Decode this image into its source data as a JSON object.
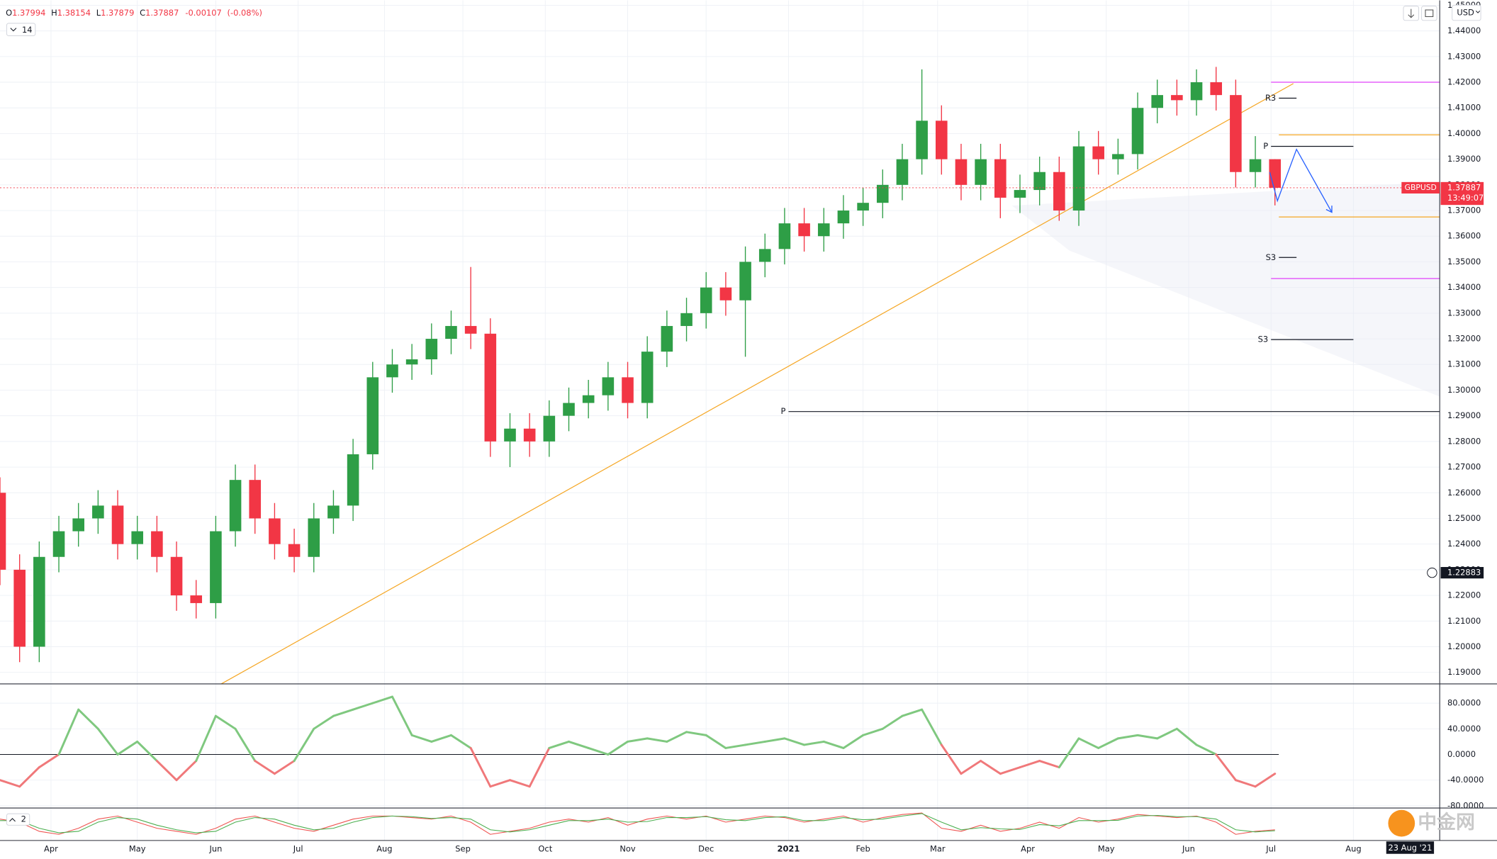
{
  "chart_data": {
    "type": "candlestick",
    "symbol": "GBPUSD",
    "currency": "USD",
    "indicators_badge": "14",
    "stoch_label": "2",
    "ohlc": {
      "open_label": "O",
      "open": 1.37994,
      "high_label": "H",
      "high": 1.38154,
      "low_label": "L",
      "low": 1.37879,
      "close_label": "C",
      "close": 1.37887,
      "change": -0.00107,
      "change_pct": "(-0.08%)"
    },
    "last_price": 1.37887,
    "countdown": "13:49:07",
    "crosshair_price": 1.22883,
    "crosshair_date": "23 Aug '21",
    "watermark": "中金网",
    "up_color": "#2e9e46",
    "down_color": "#f23645",
    "xlim": [
      0,
      367
    ],
    "xticks": [
      {
        "value": 13,
        "label": "Apr"
      },
      {
        "value": 35,
        "label": "May"
      },
      {
        "value": 55,
        "label": "Jun"
      },
      {
        "value": 76,
        "label": "Jul"
      },
      {
        "value": 98,
        "label": "Aug"
      },
      {
        "value": 118,
        "label": "Sep"
      },
      {
        "value": 139,
        "label": "Oct"
      },
      {
        "value": 160,
        "label": "Nov"
      },
      {
        "value": 180,
        "label": "Dec"
      },
      {
        "value": 201,
        "label": "2021"
      },
      {
        "value": 220,
        "label": "Feb"
      },
      {
        "value": 239,
        "label": "Mar"
      },
      {
        "value": 262,
        "label": "Apr"
      },
      {
        "value": 282,
        "label": "May"
      },
      {
        "value": 303,
        "label": "Jun"
      },
      {
        "value": 324,
        "label": "Jul"
      },
      {
        "value": 345,
        "label": "Aug"
      }
    ],
    "ylim": [
      1.1855,
      1.4519
    ],
    "yticks": [
      {
        "value": 1.19,
        "label": "1.19000"
      },
      {
        "value": 1.2,
        "label": "1.20000"
      },
      {
        "value": 1.21,
        "label": "1.21000"
      },
      {
        "value": 1.22,
        "label": "1.22000"
      },
      {
        "value": 1.23,
        "label": "1.23000"
      },
      {
        "value": 1.24,
        "label": "1.24000"
      },
      {
        "value": 1.25,
        "label": "1.25000"
      },
      {
        "value": 1.26,
        "label": "1.26000"
      },
      {
        "value": 1.27,
        "label": "1.27000"
      },
      {
        "value": 1.28,
        "label": "1.28000"
      },
      {
        "value": 1.29,
        "label": "1.29000"
      },
      {
        "value": 1.3,
        "label": "1.30000"
      },
      {
        "value": 1.31,
        "label": "1.31000"
      },
      {
        "value": 1.32,
        "label": "1.32000"
      },
      {
        "value": 1.33,
        "label": "1.33000"
      },
      {
        "value": 1.34,
        "label": "1.34000"
      },
      {
        "value": 1.35,
        "label": "1.35000"
      },
      {
        "value": 1.36,
        "label": "1.36000"
      },
      {
        "value": 1.37,
        "label": "1.37000"
      },
      {
        "value": 1.38,
        "label": "1.38000"
      },
      {
        "value": 1.39,
        "label": "1.39000"
      },
      {
        "value": 1.4,
        "label": "1.40000"
      },
      {
        "value": 1.41,
        "label": "1.41000"
      },
      {
        "value": 1.42,
        "label": "1.42000"
      },
      {
        "value": 1.43,
        "label": "1.43000"
      },
      {
        "value": 1.44,
        "label": "1.44000"
      },
      {
        "value": 1.45,
        "label": "1.45000"
      }
    ],
    "x": [
      0,
      5,
      10,
      15,
      20,
      25,
      30,
      35,
      40,
      45,
      50,
      55,
      60,
      65,
      70,
      75,
      80,
      85,
      90,
      95,
      100,
      105,
      110,
      115,
      120,
      125,
      130,
      135,
      140,
      145,
      150,
      155,
      160,
      165,
      170,
      175,
      180,
      185,
      190,
      195,
      200,
      205,
      210,
      215,
      220,
      225,
      230,
      235,
      240,
      245,
      250,
      255,
      260,
      265,
      270,
      275,
      280,
      285,
      290,
      295,
      300,
      305,
      310,
      315,
      320,
      325
    ],
    "open": [
      1.26,
      1.23,
      1.2,
      1.235,
      1.245,
      1.25,
      1.255,
      1.24,
      1.245,
      1.235,
      1.22,
      1.217,
      1.245,
      1.265,
      1.25,
      1.24,
      1.235,
      1.25,
      1.255,
      1.275,
      1.305,
      1.31,
      1.312,
      1.32,
      1.325,
      1.322,
      1.28,
      1.285,
      1.28,
      1.29,
      1.295,
      1.298,
      1.305,
      1.295,
      1.315,
      1.325,
      1.33,
      1.34,
      1.335,
      1.35,
      1.355,
      1.365,
      1.36,
      1.365,
      1.37,
      1.373,
      1.38,
      1.39,
      1.405,
      1.39,
      1.38,
      1.39,
      1.375,
      1.378,
      1.385,
      1.37,
      1.395,
      1.39,
      1.392,
      1.41,
      1.415,
      1.413,
      1.42,
      1.415,
      1.385,
      1.39
    ],
    "high": [
      1.266,
      1.236,
      1.241,
      1.251,
      1.256,
      1.261,
      1.261,
      1.251,
      1.251,
      1.241,
      1.226,
      1.251,
      1.271,
      1.271,
      1.256,
      1.246,
      1.256,
      1.261,
      1.281,
      1.311,
      1.316,
      1.318,
      1.326,
      1.331,
      1.348,
      1.328,
      1.291,
      1.291,
      1.296,
      1.301,
      1.304,
      1.311,
      1.311,
      1.321,
      1.331,
      1.336,
      1.346,
      1.346,
      1.356,
      1.361,
      1.371,
      1.371,
      1.371,
      1.376,
      1.379,
      1.386,
      1.396,
      1.425,
      1.411,
      1.396,
      1.396,
      1.396,
      1.384,
      1.391,
      1.391,
      1.401,
      1.401,
      1.398,
      1.416,
      1.421,
      1.421,
      1.425,
      1.426,
      1.421,
      1.399,
      1.39
    ],
    "low": [
      1.224,
      1.194,
      1.194,
      1.229,
      1.239,
      1.244,
      1.234,
      1.234,
      1.229,
      1.214,
      1.211,
      1.211,
      1.239,
      1.244,
      1.234,
      1.229,
      1.229,
      1.244,
      1.249,
      1.269,
      1.299,
      1.304,
      1.306,
      1.314,
      1.316,
      1.274,
      1.27,
      1.274,
      1.274,
      1.284,
      1.289,
      1.292,
      1.289,
      1.289,
      1.309,
      1.319,
      1.324,
      1.329,
      1.313,
      1.344,
      1.349,
      1.354,
      1.354,
      1.359,
      1.364,
      1.367,
      1.374,
      1.384,
      1.384,
      1.374,
      1.374,
      1.367,
      1.369,
      1.372,
      1.366,
      1.364,
      1.384,
      1.384,
      1.386,
      1.404,
      1.407,
      1.407,
      1.409,
      1.379,
      1.379,
      1.372
    ],
    "close": [
      1.23,
      1.2,
      1.235,
      1.245,
      1.25,
      1.255,
      1.24,
      1.245,
      1.235,
      1.22,
      1.217,
      1.245,
      1.265,
      1.25,
      1.24,
      1.235,
      1.25,
      1.255,
      1.275,
      1.305,
      1.31,
      1.312,
      1.32,
      1.325,
      1.322,
      1.28,
      1.285,
      1.28,
      1.29,
      1.295,
      1.298,
      1.305,
      1.295,
      1.315,
      1.325,
      1.33,
      1.34,
      1.335,
      1.35,
      1.355,
      1.365,
      1.36,
      1.365,
      1.37,
      1.373,
      1.38,
      1.39,
      1.405,
      1.39,
      1.38,
      1.39,
      1.375,
      1.378,
      1.385,
      1.37,
      1.395,
      1.39,
      1.392,
      1.41,
      1.415,
      1.413,
      1.42,
      1.415,
      1.385,
      1.39,
      1.37887
    ],
    "levels": [
      {
        "label": "R3",
        "value": 1.4138,
        "x": [
          326,
          330.5
        ],
        "color": "#131722"
      },
      {
        "label": "P",
        "value": 1.395,
        "x": [
          324,
          345
        ],
        "color": "#131722"
      },
      {
        "value": 1.42,
        "x": [
          324,
          367
        ],
        "color": "#e040fb"
      },
      {
        "value": 1.3995,
        "x": [
          326,
          367
        ],
        "color": "#f5a623"
      },
      {
        "label": "S3",
        "value": 1.3517,
        "x": [
          326,
          330.5
        ],
        "color": "#131722"
      },
      {
        "label": "S3",
        "value": 1.3197,
        "x": [
          324,
          345
        ],
        "color": "#131722"
      },
      {
        "value": 1.3435,
        "x": [
          324,
          367
        ],
        "color": "#e040fb"
      },
      {
        "value": 1.3675,
        "x": [
          326,
          367
        ],
        "color": "#f5a623"
      },
      {
        "label": "P",
        "value": 1.29165,
        "x": [
          201,
          367
        ],
        "color": "#131722"
      }
    ],
    "trendline": {
      "color": "#f5a623",
      "x": [
        56.4,
        329.7
      ],
      "y": [
        1.1855,
        1.4195
      ]
    },
    "oscillator": {
      "up_color": "#7fc87f",
      "down_color": "#f0787a",
      "ylim": [
        -82,
        110
      ],
      "yticks": [
        {
          "value": 80,
          "label": "80.0000"
        },
        {
          "value": 40,
          "label": "40.0000"
        },
        {
          "value": 0,
          "label": "0.0000"
        },
        {
          "value": -40,
          "label": "-40.0000"
        },
        {
          "value": -80,
          "label": "-80.0000"
        }
      ],
      "values": [
        -40,
        -50,
        -20,
        0,
        70,
        40,
        0,
        20,
        -10,
        -40,
        -10,
        60,
        40,
        -10,
        -30,
        -10,
        40,
        60,
        70,
        80,
        90,
        30,
        20,
        30,
        10,
        -50,
        -40,
        -50,
        10,
        20,
        10,
        0,
        20,
        25,
        20,
        35,
        30,
        10,
        15,
        20,
        25,
        15,
        20,
        10,
        30,
        40,
        60,
        70,
        15,
        -30,
        -10,
        -30,
        -20,
        -10,
        -20,
        25,
        10,
        25,
        30,
        25,
        40,
        15,
        0,
        -40,
        -50,
        -30
      ]
    },
    "stochastic": {
      "ylim": [
        0,
        100
      ],
      "series": [
        {
          "color": "#ef5350",
          "values": [
            70,
            60,
            30,
            20,
            40,
            70,
            80,
            60,
            40,
            30,
            20,
            40,
            70,
            80,
            60,
            40,
            30,
            50,
            70,
            80,
            80,
            75,
            70,
            80,
            60,
            20,
            30,
            40,
            60,
            70,
            60,
            75,
            50,
            70,
            80,
            70,
            80,
            60,
            70,
            80,
            75,
            60,
            70,
            80,
            60,
            75,
            85,
            90,
            40,
            30,
            50,
            30,
            40,
            60,
            40,
            75,
            60,
            70,
            85,
            80,
            75,
            80,
            60,
            20,
            30,
            35
          ]
        },
        {
          "color": "#4caf50",
          "values": [
            65,
            65,
            40,
            25,
            30,
            60,
            75,
            70,
            50,
            35,
            25,
            30,
            60,
            75,
            70,
            50,
            35,
            40,
            60,
            75,
            80,
            78,
            72,
            75,
            70,
            35,
            28,
            35,
            50,
            65,
            65,
            70,
            60,
            62,
            75,
            75,
            78,
            68,
            65,
            75,
            78,
            65,
            65,
            75,
            68,
            70,
            80,
            88,
            60,
            35,
            42,
            38,
            36,
            52,
            48,
            65,
            65,
            66,
            80,
            82,
            78,
            78,
            70,
            35,
            28,
            32
          ]
        }
      ]
    }
  }
}
